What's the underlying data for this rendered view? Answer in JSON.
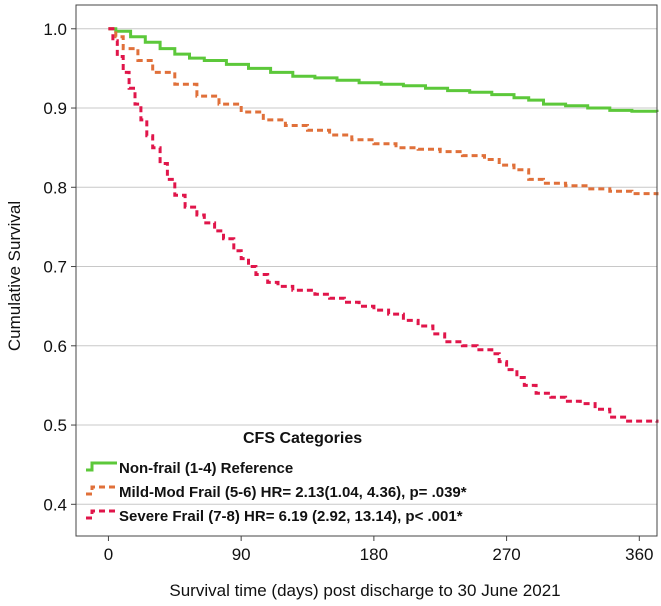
{
  "chart_data": {
    "type": "line",
    "subtype": "kaplan-meier-step",
    "title": "",
    "xlabel": "Survival time (days) post discharge to 30 June 2021",
    "ylabel": "Cumulative Survival",
    "xlim": [
      -22,
      372
    ],
    "ylim": [
      0.36,
      1.03
    ],
    "xticks": [
      0,
      90,
      180,
      270,
      360
    ],
    "yticks": [
      0.4,
      0.5,
      0.6,
      0.7,
      0.8,
      0.9,
      1.0
    ],
    "ytick_labels": [
      "0.4",
      "0.5",
      "0.6",
      "0.7",
      "0.8",
      "0.9",
      "1.0"
    ],
    "grid": "horizontal",
    "legend": {
      "title": "CFS Categories",
      "placement": "bottom-left"
    },
    "series": [
      {
        "name": "Non-frail (1-4) Reference",
        "color": "#5cc83a",
        "dash": "solid",
        "points": [
          [
            0,
            1.0
          ],
          [
            5,
            0.997
          ],
          [
            15,
            0.99
          ],
          [
            25,
            0.983
          ],
          [
            35,
            0.975
          ],
          [
            45,
            0.968
          ],
          [
            55,
            0.963
          ],
          [
            65,
            0.96
          ],
          [
            80,
            0.955
          ],
          [
            95,
            0.95
          ],
          [
            110,
            0.945
          ],
          [
            125,
            0.94
          ],
          [
            140,
            0.938
          ],
          [
            155,
            0.935
          ],
          [
            170,
            0.932
          ],
          [
            185,
            0.93
          ],
          [
            200,
            0.928
          ],
          [
            215,
            0.925
          ],
          [
            230,
            0.922
          ],
          [
            245,
            0.92
          ],
          [
            260,
            0.917
          ],
          [
            275,
            0.913
          ],
          [
            285,
            0.91
          ],
          [
            295,
            0.905
          ],
          [
            310,
            0.903
          ],
          [
            325,
            0.9
          ],
          [
            340,
            0.897
          ],
          [
            355,
            0.896
          ],
          [
            372,
            0.895
          ]
        ]
      },
      {
        "name": "Mild-Mod Frail (5-6) HR= 2.13(1.04, 4.36), p= .039*",
        "color": "#e0703a",
        "dash": "dashed",
        "points": [
          [
            0,
            1.0
          ],
          [
            5,
            0.99
          ],
          [
            10,
            0.975
          ],
          [
            20,
            0.96
          ],
          [
            30,
            0.945
          ],
          [
            45,
            0.93
          ],
          [
            60,
            0.915
          ],
          [
            75,
            0.905
          ],
          [
            90,
            0.895
          ],
          [
            105,
            0.885
          ],
          [
            120,
            0.878
          ],
          [
            135,
            0.872
          ],
          [
            150,
            0.866
          ],
          [
            165,
            0.86
          ],
          [
            180,
            0.855
          ],
          [
            195,
            0.85
          ],
          [
            210,
            0.848
          ],
          [
            225,
            0.845
          ],
          [
            240,
            0.84
          ],
          [
            255,
            0.835
          ],
          [
            265,
            0.828
          ],
          [
            275,
            0.822
          ],
          [
            285,
            0.81
          ],
          [
            295,
            0.805
          ],
          [
            310,
            0.802
          ],
          [
            325,
            0.798
          ],
          [
            340,
            0.795
          ],
          [
            355,
            0.792
          ],
          [
            372,
            0.79
          ]
        ]
      },
      {
        "name": "Severe Frail (7-8) HR= 6.19 (2.92, 13.14), p< .001*",
        "color": "#e0154a",
        "dash": "dashed",
        "points": [
          [
            0,
            1.0
          ],
          [
            3,
            0.985
          ],
          [
            6,
            0.965
          ],
          [
            10,
            0.945
          ],
          [
            14,
            0.925
          ],
          [
            18,
            0.905
          ],
          [
            22,
            0.885
          ],
          [
            26,
            0.865
          ],
          [
            30,
            0.85
          ],
          [
            35,
            0.83
          ],
          [
            40,
            0.81
          ],
          [
            45,
            0.79
          ],
          [
            52,
            0.775
          ],
          [
            60,
            0.765
          ],
          [
            65,
            0.755
          ],
          [
            72,
            0.745
          ],
          [
            78,
            0.735
          ],
          [
            85,
            0.72
          ],
          [
            90,
            0.71
          ],
          [
            95,
            0.7
          ],
          [
            100,
            0.69
          ],
          [
            108,
            0.68
          ],
          [
            115,
            0.675
          ],
          [
            125,
            0.67
          ],
          [
            140,
            0.665
          ],
          [
            150,
            0.66
          ],
          [
            160,
            0.655
          ],
          [
            170,
            0.65
          ],
          [
            180,
            0.645
          ],
          [
            190,
            0.64
          ],
          [
            200,
            0.632
          ],
          [
            210,
            0.625
          ],
          [
            220,
            0.615
          ],
          [
            228,
            0.605
          ],
          [
            240,
            0.6
          ],
          [
            250,
            0.595
          ],
          [
            260,
            0.59
          ],
          [
            265,
            0.58
          ],
          [
            270,
            0.57
          ],
          [
            277,
            0.56
          ],
          [
            282,
            0.55
          ],
          [
            290,
            0.54
          ],
          [
            300,
            0.535
          ],
          [
            310,
            0.53
          ],
          [
            320,
            0.527
          ],
          [
            330,
            0.52
          ],
          [
            340,
            0.51
          ],
          [
            350,
            0.505
          ],
          [
            372,
            0.503
          ]
        ]
      }
    ]
  }
}
